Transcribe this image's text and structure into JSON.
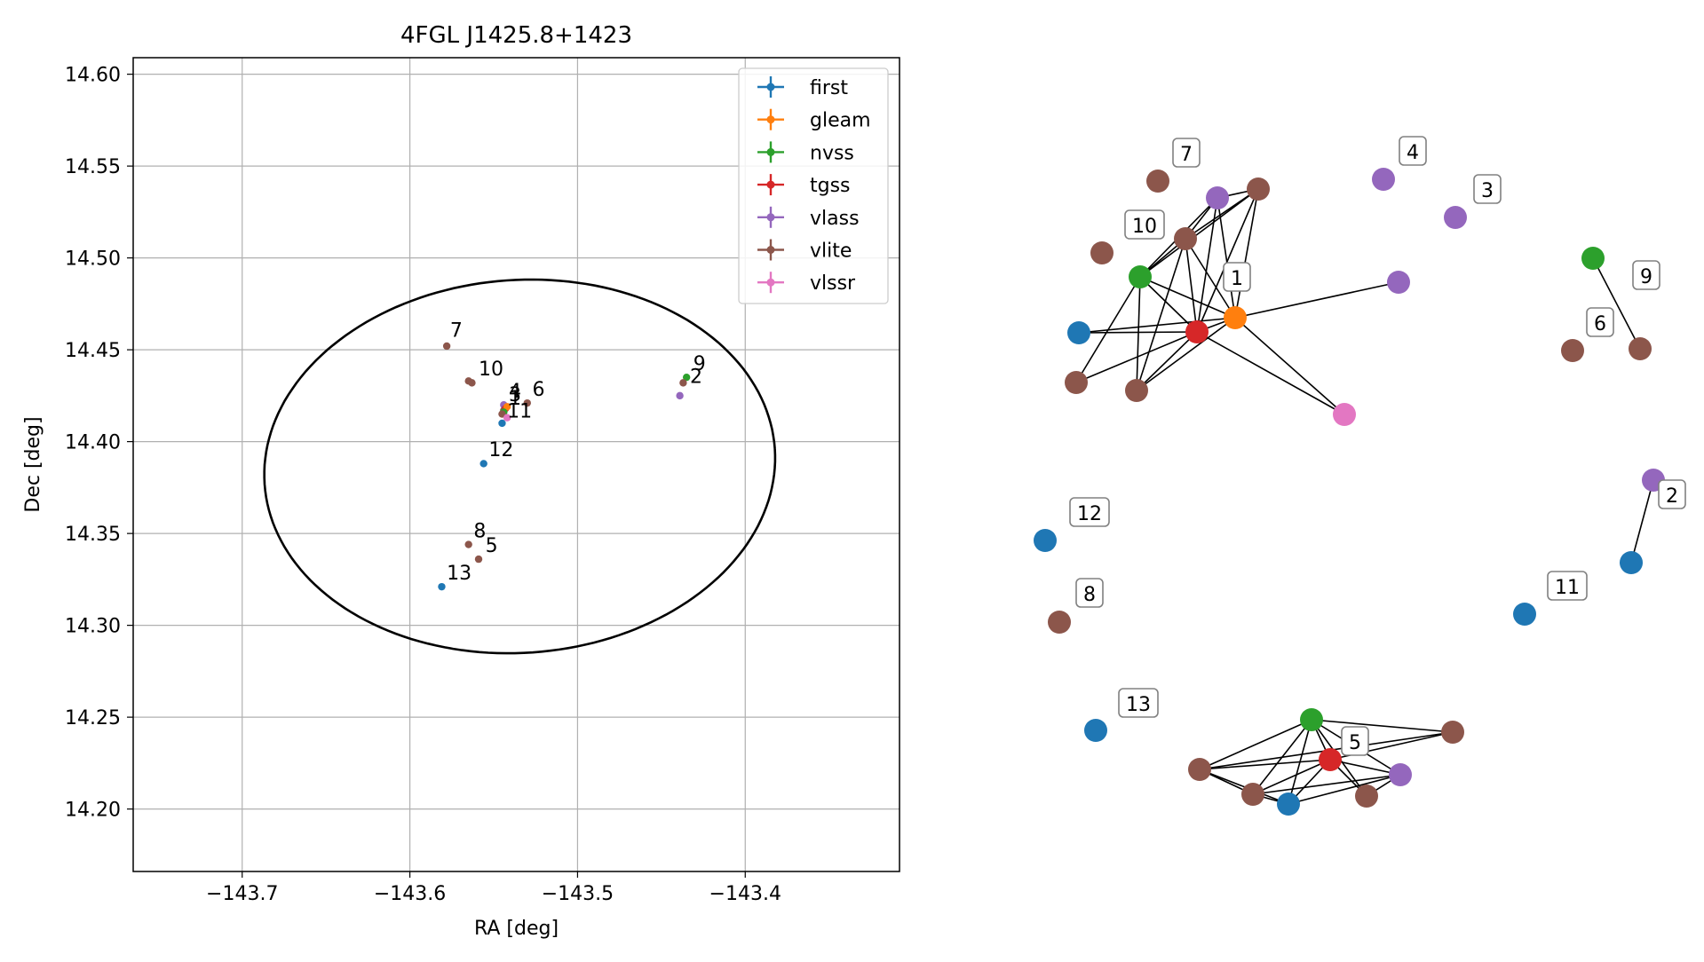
{
  "colors": {
    "first": "#1f77b4",
    "gleam": "#ff7f0e",
    "nvss": "#2ca02c",
    "tgss": "#d62728",
    "vlass": "#9467bd",
    "vlite": "#8c564b",
    "vlssr": "#e377c2",
    "ellipse": "#000000",
    "grid": "#b0b0b0"
  },
  "chart_data": [
    {
      "type": "scatter",
      "title": "4FGL J1425.8+1423",
      "xlabel": "RA [deg]",
      "ylabel": "Dec [deg]",
      "xlim": [
        -143.765,
        -143.308
      ],
      "ylim": [
        14.166,
        14.609
      ],
      "xticks": [
        -143.7,
        -143.6,
        -143.5,
        -143.4
      ],
      "xtick_labels": [
        "−143.7",
        "−143.6",
        "−143.5",
        "−143.4"
      ],
      "yticks": [
        14.2,
        14.25,
        14.3,
        14.35,
        14.4,
        14.45,
        14.5,
        14.55,
        14.6
      ],
      "ytick_labels": [
        "14.20",
        "14.25",
        "14.30",
        "14.35",
        "14.40",
        "14.45",
        "14.50",
        "14.55",
        "14.60"
      ],
      "grid": true,
      "legend": {
        "placement": "top-right",
        "entries": [
          "first",
          "gleam",
          "nvss",
          "tgss",
          "vlass",
          "vlite",
          "vlssr"
        ]
      },
      "ellipse": {
        "center": [
          -143.5345,
          14.3865
        ],
        "semi_axis_ra": 0.1525,
        "semi_axis_dec": 0.1015,
        "angle_deg": 4
      },
      "points": [
        {
          "survey": "vlite",
          "ra": -143.578,
          "dec": 14.452
        },
        {
          "survey": "vlite",
          "ra": -143.563,
          "dec": 14.432
        },
        {
          "survey": "vlite",
          "ra": -143.565,
          "dec": 14.433
        },
        {
          "survey": "vlass",
          "ra": -143.544,
          "dec": 14.42
        },
        {
          "survey": "vlite",
          "ra": -143.544,
          "dec": 14.417
        },
        {
          "survey": "tgss",
          "ra": -143.543,
          "dec": 14.418
        },
        {
          "survey": "gleam",
          "ra": -143.542,
          "dec": 14.419
        },
        {
          "survey": "nvss",
          "ra": -143.544,
          "dec": 14.416
        },
        {
          "survey": "vlite",
          "ra": -143.53,
          "dec": 14.421
        },
        {
          "survey": "vlite",
          "ra": -143.545,
          "dec": 14.415
        },
        {
          "survey": "vlssr",
          "ra": -143.542,
          "dec": 14.413
        },
        {
          "survey": "first",
          "ra": -143.545,
          "dec": 14.41
        },
        {
          "survey": "first",
          "ra": -143.556,
          "dec": 14.388
        },
        {
          "survey": "nvss",
          "ra": -143.435,
          "dec": 14.435
        },
        {
          "survey": "vlite",
          "ra": -143.437,
          "dec": 14.432
        },
        {
          "survey": "vlass",
          "ra": -143.439,
          "dec": 14.425
        },
        {
          "survey": "vlite",
          "ra": -143.565,
          "dec": 14.344
        },
        {
          "survey": "vlite",
          "ra": -143.559,
          "dec": 14.336
        },
        {
          "survey": "first",
          "ra": -143.581,
          "dec": 14.321
        }
      ],
      "labels": [
        {
          "text": "7",
          "ra": -143.576,
          "dec": 14.457
        },
        {
          "text": "10",
          "ra": -143.559,
          "dec": 14.436
        },
        {
          "text": "4",
          "ra": -143.541,
          "dec": 14.424
        },
        {
          "text": "3",
          "ra": -143.541,
          "dec": 14.422
        },
        {
          "text": "1",
          "ra": -143.541,
          "dec": 14.42
        },
        {
          "text": "6",
          "ra": -143.527,
          "dec": 14.425
        },
        {
          "text": "11",
          "ra": -143.542,
          "dec": 14.413
        },
        {
          "text": "12",
          "ra": -143.553,
          "dec": 14.392
        },
        {
          "text": "9",
          "ra": -143.431,
          "dec": 14.439
        },
        {
          "text": "2",
          "ra": -143.433,
          "dec": 14.432
        },
        {
          "text": "8",
          "ra": -143.562,
          "dec": 14.348
        },
        {
          "text": "5",
          "ra": -143.555,
          "dec": 14.34
        },
        {
          "text": "13",
          "ra": -143.578,
          "dec": 14.325
        }
      ]
    },
    {
      "type": "network",
      "nodes": [
        {
          "id": "n1",
          "survey": "vlite"
        },
        {
          "id": "n2",
          "survey": "vlass"
        },
        {
          "id": "n3",
          "survey": "vlite"
        },
        {
          "id": "n4",
          "survey": "vlite"
        },
        {
          "id": "n5",
          "survey": "nvss"
        },
        {
          "id": "n6",
          "survey": "first"
        },
        {
          "id": "n7",
          "survey": "tgss"
        },
        {
          "id": "n8",
          "survey": "gleam"
        },
        {
          "id": "n9",
          "survey": "vlite"
        },
        {
          "id": "n10",
          "survey": "vlite"
        },
        {
          "id": "n11",
          "survey": "vlass"
        },
        {
          "id": "n12",
          "survey": "vlssr"
        },
        {
          "id": "n13",
          "survey": "vlite"
        },
        {
          "id": "n14",
          "survey": "vlass"
        },
        {
          "id": "n15",
          "survey": "vlass"
        },
        {
          "id": "n16",
          "survey": "nvss"
        },
        {
          "id": "n17",
          "survey": "vlite"
        },
        {
          "id": "n18",
          "survey": "vlite"
        },
        {
          "id": "n19",
          "survey": "vlass"
        },
        {
          "id": "n20",
          "survey": "first"
        },
        {
          "id": "n21",
          "survey": "first"
        },
        {
          "id": "n22",
          "survey": "first"
        },
        {
          "id": "n23",
          "survey": "vlite"
        },
        {
          "id": "n24",
          "survey": "first"
        },
        {
          "id": "n25",
          "survey": "nvss"
        },
        {
          "id": "n26",
          "survey": "vlite"
        },
        {
          "id": "n27",
          "survey": "tgss"
        },
        {
          "id": "n28",
          "survey": "vlite"
        },
        {
          "id": "n29",
          "survey": "vlite"
        },
        {
          "id": "n30",
          "survey": "first"
        },
        {
          "id": "n31",
          "survey": "vlite"
        },
        {
          "id": "n32",
          "survey": "vlass"
        }
      ],
      "edges": [
        [
          "n2",
          "n3"
        ],
        [
          "n2",
          "n4"
        ],
        [
          "n2",
          "n5"
        ],
        [
          "n2",
          "n7"
        ],
        [
          "n2",
          "n8"
        ],
        [
          "n3",
          "n4"
        ],
        [
          "n3",
          "n5"
        ],
        [
          "n3",
          "n7"
        ],
        [
          "n3",
          "n8"
        ],
        [
          "n4",
          "n5"
        ],
        [
          "n4",
          "n7"
        ],
        [
          "n4",
          "n8"
        ],
        [
          "n4",
          "n10"
        ],
        [
          "n5",
          "n7"
        ],
        [
          "n5",
          "n8"
        ],
        [
          "n5",
          "n9"
        ],
        [
          "n5",
          "n10"
        ],
        [
          "n6",
          "n7"
        ],
        [
          "n6",
          "n8"
        ],
        [
          "n7",
          "n8"
        ],
        [
          "n7",
          "n9"
        ],
        [
          "n7",
          "n10"
        ],
        [
          "n8",
          "n10"
        ],
        [
          "n8",
          "n11"
        ],
        [
          "n8",
          "n12"
        ],
        [
          "n7",
          "n12"
        ],
        [
          "n16",
          "n17"
        ],
        [
          "n19",
          "n20"
        ],
        [
          "n25",
          "n26"
        ],
        [
          "n25",
          "n27"
        ],
        [
          "n25",
          "n28"
        ],
        [
          "n25",
          "n29"
        ],
        [
          "n25",
          "n30"
        ],
        [
          "n25",
          "n31"
        ],
        [
          "n25",
          "n32"
        ],
        [
          "n26",
          "n27"
        ],
        [
          "n26",
          "n28"
        ],
        [
          "n27",
          "n28"
        ],
        [
          "n27",
          "n29"
        ],
        [
          "n27",
          "n30"
        ],
        [
          "n27",
          "n31"
        ],
        [
          "n27",
          "n32"
        ],
        [
          "n28",
          "n29"
        ],
        [
          "n28",
          "n30"
        ],
        [
          "n29",
          "n30"
        ],
        [
          "n29",
          "n32"
        ],
        [
          "n30",
          "n32"
        ],
        [
          "n31",
          "n32"
        ]
      ],
      "group_labels": [
        "7",
        "4",
        "3",
        "10",
        "1",
        "9",
        "6",
        "2",
        "12",
        "11",
        "8",
        "13",
        "5"
      ]
    }
  ]
}
